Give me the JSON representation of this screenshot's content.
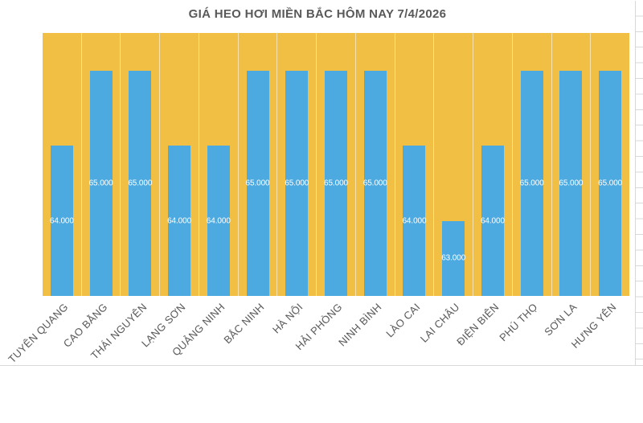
{
  "sheet": {
    "gridline_color": "#D9D9D9"
  },
  "chart_data": {
    "type": "bar",
    "title": "GIÁ HEO HƠI MIỀN BẮC HÔM NAY 7/4/2026",
    "categories": [
      "TUYÊN QUANG",
      "CAO BẰNG",
      "THÁI NGUYÊN",
      "LẠNG SƠN",
      "QUẢNG NINH",
      "BẮC NINH",
      "HÀ NỘI",
      "HẢI PHÒNG",
      "NINH BÌNH",
      "LÀO CAI",
      "LAI CHÂU",
      "ĐIỆN BIÊN",
      "PHÚ THỌ",
      "SƠN LA",
      "HƯNG YÊN"
    ],
    "values": [
      64000,
      65000,
      65000,
      64000,
      64000,
      65000,
      65000,
      65000,
      65000,
      64000,
      63000,
      64000,
      65000,
      65000,
      65000
    ],
    "value_labels": [
      "64.000",
      "65.000",
      "65.000",
      "64.000",
      "64.000",
      "65.000",
      "65.000",
      "65.000",
      "65.000",
      "64.000",
      "63.000",
      "64.000",
      "65.000",
      "65.000",
      "65.000"
    ],
    "ylim": [
      62000,
      65500
    ],
    "xlabel": "",
    "ylabel": "",
    "legend": "none",
    "grid": "vertical category separators only",
    "label_rotation_deg": -45,
    "colors": {
      "bar": "#4DAAE0",
      "plot_background": "#F1BF43",
      "separator": "rgba(255,255,255,0.55)",
      "title_text": "#595959",
      "axis_text": "#595959",
      "value_label_text": "#FFFFFF"
    }
  }
}
